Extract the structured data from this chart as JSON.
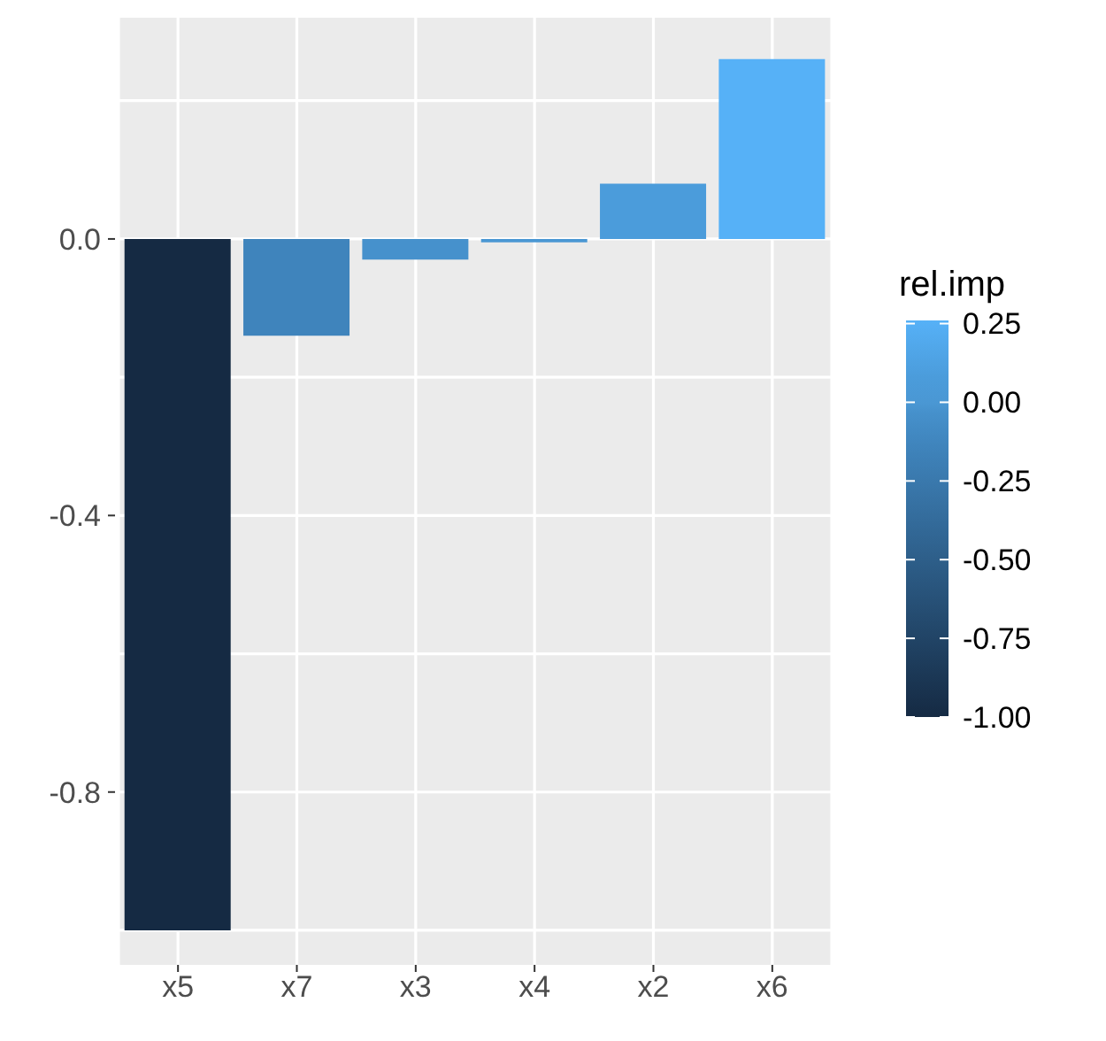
{
  "chart_data": {
    "type": "bar",
    "categories": [
      "x5",
      "x7",
      "x3",
      "x4",
      "x2",
      "x6"
    ],
    "values": [
      -1.0,
      -0.14,
      -0.03,
      -0.005,
      0.08,
      0.26
    ],
    "colors": [
      "#152a43",
      "#3f84bc",
      "#4691cc",
      "#4a97d3",
      "#4b9cdb",
      "#56b1f7"
    ],
    "ylim": [
      -1.05,
      0.32
    ],
    "yticks": [
      {
        "value": -1.0,
        "label": null
      },
      {
        "value": -0.8,
        "label": "-0.8"
      },
      {
        "value": -0.6,
        "label": null
      },
      {
        "value": -0.4,
        "label": "-0.4"
      },
      {
        "value": -0.2,
        "label": null
      },
      {
        "value": 0.0,
        "label": "0.0"
      },
      {
        "value": 0.2,
        "label": null
      }
    ],
    "grid": true,
    "clabel": "rel.imp",
    "clim": [
      -1.0,
      0.26
    ],
    "cticks": [
      {
        "value": 0.25,
        "label": "0.25"
      },
      {
        "value": 0,
        "label": "0.00"
      },
      {
        "value": -0.25,
        "label": "-0.25"
      },
      {
        "value": -0.5,
        "label": "-0.50"
      },
      {
        "value": -0.75,
        "label": "-0.75"
      },
      {
        "value": -1.0,
        "label": "-1.00"
      }
    ]
  }
}
